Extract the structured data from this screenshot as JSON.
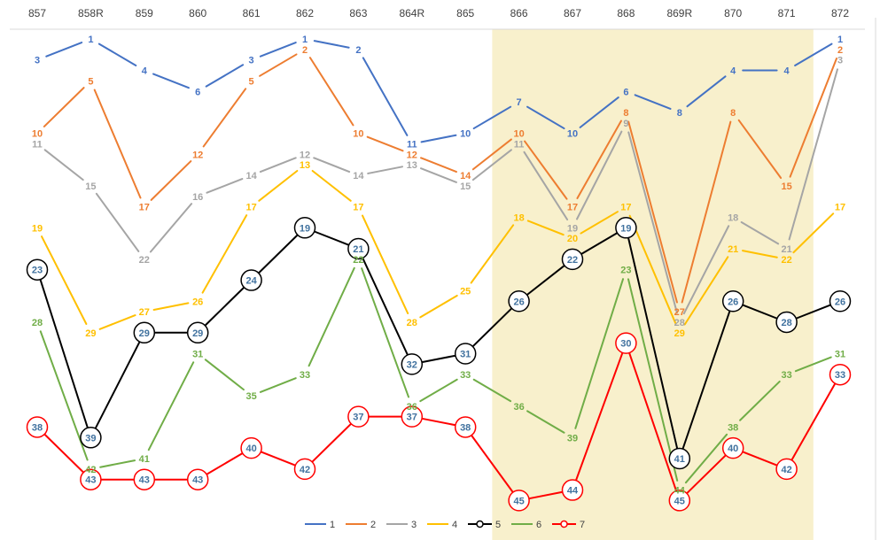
{
  "chart_data": {
    "type": "line",
    "title": "",
    "xlabel": "",
    "ylabel": "",
    "categories": [
      "857",
      "858R",
      "859",
      "860",
      "861",
      "862",
      "863",
      "864R",
      "865",
      "866",
      "867",
      "868",
      "869R",
      "870",
      "871",
      "872"
    ],
    "highlight_range": [
      "866",
      "871"
    ],
    "ylim": [
      1,
      45
    ],
    "y_inverted": true,
    "grid": false,
    "legend_position": "bottom",
    "series": [
      {
        "name": "1",
        "color": "#4472c4",
        "marker": false,
        "values": [
          3,
          1,
          4,
          6,
          3,
          1,
          2,
          11,
          10,
          7,
          10,
          6,
          8,
          4,
          4,
          1
        ]
      },
      {
        "name": "2",
        "color": "#ed7d31",
        "marker": false,
        "values": [
          10,
          5,
          17,
          12,
          5,
          2,
          10,
          12,
          14,
          10,
          17,
          8,
          27,
          8,
          15,
          2
        ]
      },
      {
        "name": "3",
        "color": "#a5a5a5",
        "marker": false,
        "values": [
          11,
          15,
          22,
          16,
          14,
          12,
          14,
          13,
          15,
          11,
          19,
          9,
          28,
          18,
          21,
          3
        ]
      },
      {
        "name": "4",
        "color": "#ffc000",
        "marker": false,
        "values": [
          19,
          29,
          27,
          26,
          17,
          13,
          17,
          28,
          25,
          18,
          20,
          17,
          29,
          21,
          22,
          17
        ]
      },
      {
        "name": "5",
        "color": "#000000",
        "marker": true,
        "values": [
          23,
          39,
          29,
          29,
          24,
          19,
          21,
          32,
          31,
          26,
          22,
          19,
          41,
          26,
          28,
          26
        ]
      },
      {
        "name": "6",
        "color": "#70ad47",
        "marker": false,
        "values": [
          28,
          42,
          41,
          31,
          35,
          33,
          22,
          36,
          33,
          36,
          39,
          23,
          44,
          38,
          33,
          31
        ]
      },
      {
        "name": "7",
        "color": "#ff0000",
        "marker": true,
        "values": [
          38,
          43,
          43,
          43,
          40,
          42,
          37,
          37,
          38,
          45,
          44,
          30,
          45,
          40,
          42,
          33
        ]
      }
    ]
  }
}
